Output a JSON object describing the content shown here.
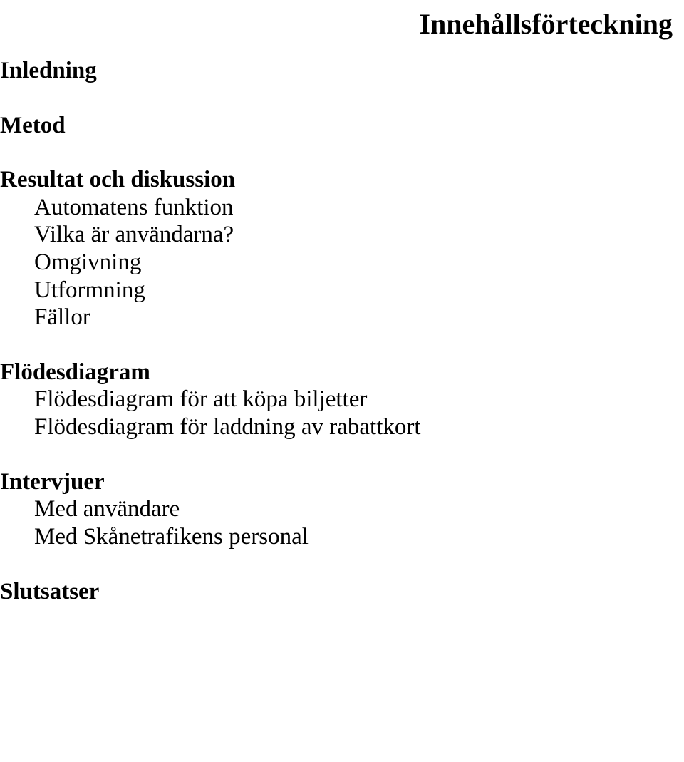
{
  "toc_title": "Innehållsförteckning",
  "sections": {
    "inledning": {
      "heading": "Inledning"
    },
    "metod": {
      "heading": "Metod"
    },
    "resultat": {
      "heading": "Resultat och diskussion",
      "items": [
        "Automatens funktion",
        "Vilka är användarna?",
        "Omgivning",
        "Utformning",
        "Fällor"
      ]
    },
    "flodesdiagram": {
      "heading": "Flödesdiagram",
      "items": [
        "Flödesdiagram för att köpa biljetter",
        "Flödesdiagram för laddning av rabattkort"
      ]
    },
    "intervjuer": {
      "heading": "Intervjuer",
      "items": [
        "Med användare",
        "Med Skånetrafikens personal"
      ]
    },
    "slutsatser": {
      "heading": "Slutsatser"
    }
  }
}
